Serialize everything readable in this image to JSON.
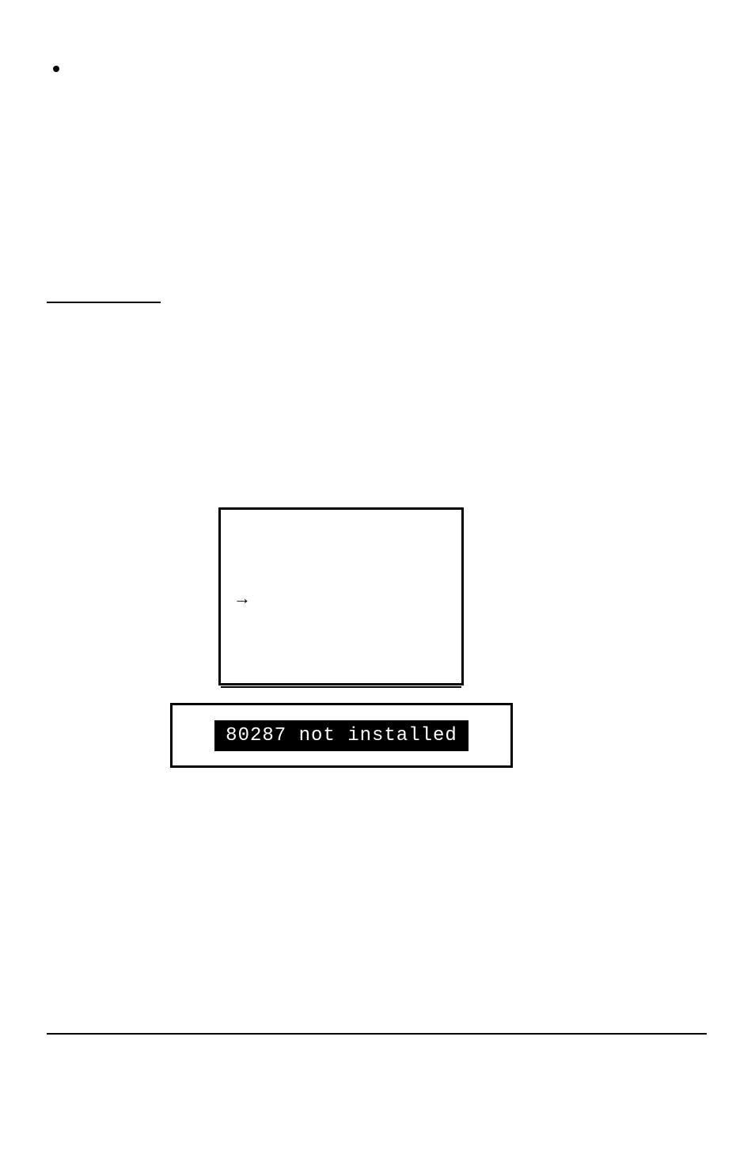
{
  "diagram": {
    "arrow_symbol": "→",
    "inner_border_color": "#000000",
    "outer_border_color": "#000000",
    "background_color": "#ffffff"
  },
  "message": {
    "text": "80287  not installed",
    "text_color": "#ffffff",
    "bar_background": "#000000",
    "font_family": "Courier New",
    "font_size": 24
  },
  "page": {
    "background_color": "#ffffff",
    "bullet_color": "#000000",
    "underline_color": "#000000",
    "footer_line_color": "#000000"
  }
}
